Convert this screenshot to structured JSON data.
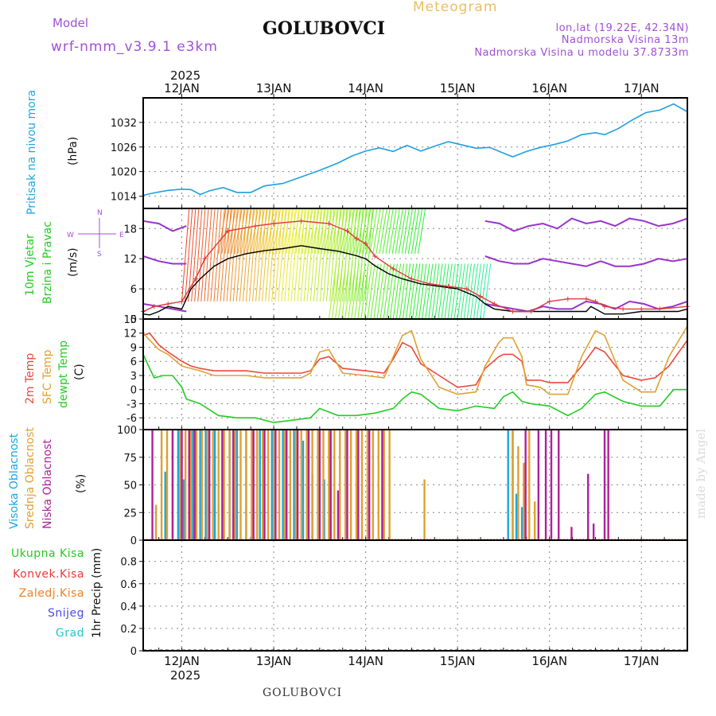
{
  "header": {
    "model_label": "Model",
    "model_name": "wrf-nmm_v3.9.1 e3km",
    "station": "GOLUBOVCI",
    "title": "Meteogram",
    "coords": "lon,lat (19.22E, 42.34N)",
    "altitude": "Nadmorska Visina 13m",
    "model_altitude": "Nadmorska Visina u modelu 37.8733m",
    "year": "2025",
    "footer_station": "GOLUBOVCI",
    "credit": "made by Angel"
  },
  "colors": {
    "pressure": "#1f9fe0",
    "temp2m": "#e84a3c",
    "sfc": "#e0a030",
    "dewpt": "#22cc22",
    "purple": "#9933cc",
    "high_cloud": "#1aa6e0",
    "mid_cloud": "#e0a030",
    "low_cloud": "#b0209a",
    "total_precip": "#22cc22",
    "conv_precip": "#e83a3a",
    "frz_precip": "#f08020",
    "snow": "#4a4ae8",
    "grad": "#22c8c8",
    "wind_red": "#e03a3a",
    "wind_black": "#000000"
  },
  "chart_data": [
    {
      "type": "line",
      "id": "pressure",
      "ylabel_1": "Pritisak na nivou mora",
      "ylabel_unit": "(hPa)",
      "ylim": [
        1011,
        1038
      ],
      "yticks": [
        1014,
        1020,
        1026,
        1032
      ],
      "xlim": [
        11.58,
        17.5
      ],
      "x_day_ticks": [
        "12JAN",
        "13JAN",
        "14JAN",
        "15JAN",
        "16JAN",
        "17JAN"
      ],
      "series": [
        {
          "name": "Sea level pressure",
          "x": [
            11.58,
            11.7,
            11.85,
            12.0,
            12.1,
            12.2,
            12.3,
            12.45,
            12.6,
            12.75,
            12.9,
            13.1,
            13.3,
            13.5,
            13.7,
            13.85,
            14.0,
            14.15,
            14.3,
            14.45,
            14.6,
            14.75,
            14.9,
            15.05,
            15.2,
            15.35,
            15.5,
            15.6,
            15.75,
            15.9,
            16.05,
            16.2,
            16.35,
            16.5,
            16.6,
            16.75,
            16.9,
            17.05,
            17.2,
            17.35,
            17.5
          ],
          "values": [
            1014.2,
            1014.8,
            1015.4,
            1015.7,
            1015.6,
            1014.4,
            1015.3,
            1016.1,
            1014.9,
            1014.9,
            1016.5,
            1017.1,
            1018.7,
            1020.3,
            1022.1,
            1023.8,
            1025.0,
            1025.8,
            1024.9,
            1026.4,
            1025.0,
            1026.2,
            1027.3,
            1026.5,
            1025.7,
            1025.9,
            1024.5,
            1023.6,
            1024.9,
            1025.9,
            1026.6,
            1027.5,
            1029.0,
            1029.5,
            1029.0,
            1030.5,
            1032.6,
            1034.4,
            1035.0,
            1036.5,
            1034.6
          ]
        }
      ]
    },
    {
      "type": "line",
      "id": "wind",
      "ylabel_1": "10m Vjetar",
      "ylabel_2": "Brzina i Pravac",
      "ylabel_unit": "(m/s)",
      "compass_top": "N",
      "compass_bottom": "S",
      "compass_west": "W",
      "compass_east": "E",
      "ylim": [
        0,
        22
      ],
      "yticks": [
        0,
        6,
        12,
        18
      ],
      "xlim": [
        11.58,
        17.5
      ],
      "series": [
        {
          "name": "Wind speed",
          "color_key": "wind_black",
          "x": [
            11.58,
            11.65,
            11.75,
            11.85,
            12.0,
            12.1,
            12.2,
            12.35,
            12.5,
            12.7,
            12.9,
            13.1,
            13.3,
            13.5,
            13.7,
            13.9,
            14.0,
            14.1,
            14.25,
            14.4,
            14.6,
            14.8,
            15.0,
            15.2,
            15.3,
            15.4,
            15.6,
            15.8,
            16.0,
            16.2,
            16.4,
            16.45,
            16.5,
            16.6,
            16.8,
            17.0,
            17.2,
            17.4,
            17.5
          ],
          "values": [
            1.0,
            0.8,
            1.5,
            2.5,
            2.0,
            6.0,
            8.0,
            10.5,
            12.0,
            13.0,
            13.6,
            14.0,
            14.6,
            14.0,
            13.5,
            12.6,
            12.0,
            10.6,
            9.0,
            8.0,
            7.0,
            6.5,
            6.0,
            4.5,
            3.0,
            2.0,
            1.5,
            1.5,
            1.5,
            1.5,
            1.5,
            2.5,
            2.0,
            1.0,
            1.0,
            1.5,
            1.5,
            1.5,
            2.0
          ]
        },
        {
          "name": "Wind gust",
          "color_key": "wind_red",
          "x": [
            11.58,
            11.7,
            11.85,
            12.0,
            12.15,
            12.25,
            12.5,
            12.8,
            13.0,
            13.3,
            13.6,
            13.8,
            13.9,
            14.0,
            14.1,
            14.3,
            14.5,
            14.7,
            14.9,
            15.1,
            15.25,
            15.4,
            15.6,
            15.8,
            16.0,
            16.2,
            16.4,
            16.5,
            16.6,
            16.8,
            17.0,
            17.2,
            17.5
          ],
          "values": [
            1.5,
            2.5,
            3.0,
            3.5,
            8.0,
            12.0,
            17.5,
            18.5,
            19.0,
            19.5,
            19.0,
            17.5,
            16.0,
            15.0,
            12.5,
            10.0,
            8.0,
            7.0,
            6.5,
            6.0,
            4.5,
            3.0,
            1.5,
            1.5,
            3.5,
            4.0,
            4.0,
            3.5,
            2.5,
            2.0,
            2.0,
            2.0,
            2.5
          ]
        }
      ]
    },
    {
      "type": "line",
      "id": "temperature",
      "ylabel_1": "2m Temp",
      "ylabel_2": "SFC Temp",
      "ylabel_3": "dewpt Temp",
      "ylabel_unit": "(C)",
      "ylim": [
        -8.5,
        15
      ],
      "yticks": [
        -6,
        -3,
        0,
        3,
        6,
        9,
        12,
        15
      ],
      "xlim": [
        11.58,
        17.5
      ],
      "series": [
        {
          "name": "2m Temp",
          "color_key": "temp2m",
          "x": [
            11.58,
            11.65,
            11.75,
            11.85,
            12.0,
            12.1,
            12.2,
            12.35,
            12.5,
            12.7,
            12.9,
            13.1,
            13.3,
            13.4,
            13.5,
            13.6,
            13.75,
            14.0,
            14.2,
            14.3,
            14.4,
            14.5,
            14.6,
            14.8,
            15.0,
            15.2,
            15.3,
            15.45,
            15.5,
            15.6,
            15.7,
            15.75,
            15.9,
            16.0,
            16.2,
            16.35,
            16.5,
            16.6,
            16.8,
            17.0,
            17.15,
            17.3,
            17.5
          ],
          "values": [
            11.5,
            12.0,
            9.5,
            8.0,
            6.0,
            5.0,
            4.5,
            4.0,
            4.0,
            4.0,
            3.5,
            3.5,
            3.5,
            4.0,
            6.5,
            7.0,
            4.5,
            4.0,
            3.5,
            6.5,
            10.0,
            9.0,
            5.5,
            3.0,
            0.5,
            1.0,
            4.5,
            7.0,
            7.5,
            7.5,
            6.0,
            2.0,
            2.0,
            1.5,
            1.5,
            5.0,
            9.0,
            8.0,
            3.0,
            2.0,
            2.5,
            5.0,
            10.5
          ]
        },
        {
          "name": "SFC Temp",
          "color_key": "sfc",
          "x": [
            11.58,
            11.65,
            11.75,
            11.85,
            12.0,
            12.1,
            12.2,
            12.35,
            12.5,
            12.7,
            12.9,
            13.1,
            13.3,
            13.4,
            13.5,
            13.6,
            13.75,
            14.0,
            14.2,
            14.3,
            14.4,
            14.5,
            14.6,
            14.8,
            15.0,
            15.2,
            15.3,
            15.45,
            15.5,
            15.6,
            15.7,
            15.75,
            15.9,
            16.0,
            16.2,
            16.35,
            16.5,
            16.6,
            16.8,
            17.0,
            17.15,
            17.3,
            17.5
          ],
          "values": [
            12.0,
            10.5,
            8.5,
            7.5,
            5.0,
            4.5,
            4.0,
            3.0,
            3.0,
            3.0,
            2.5,
            2.5,
            2.5,
            3.5,
            8.0,
            8.5,
            3.5,
            3.0,
            2.5,
            7.0,
            11.5,
            12.5,
            6.5,
            0.5,
            -1.0,
            -0.5,
            5.0,
            10.0,
            11.0,
            11.0,
            7.0,
            1.0,
            0.5,
            -1.0,
            -1.0,
            7.0,
            12.5,
            11.5,
            2.0,
            -0.5,
            -0.5,
            7.0,
            13.5
          ]
        },
        {
          "name": "dewpt Temp",
          "color_key": "dewpt",
          "x": [
            11.58,
            11.65,
            11.7,
            11.8,
            11.9,
            12.0,
            12.05,
            12.2,
            12.4,
            12.6,
            12.8,
            13.0,
            13.2,
            13.4,
            13.5,
            13.7,
            13.9,
            14.1,
            14.3,
            14.4,
            14.5,
            14.6,
            14.8,
            15.0,
            15.2,
            15.4,
            15.5,
            15.6,
            15.7,
            15.8,
            16.0,
            16.2,
            16.35,
            16.5,
            16.6,
            16.8,
            17.0,
            17.2,
            17.35,
            17.5
          ],
          "values": [
            7.5,
            4.5,
            2.5,
            3.0,
            3.0,
            0.5,
            -2.0,
            -3.0,
            -5.5,
            -6.0,
            -6.0,
            -7.0,
            -6.5,
            -6.0,
            -4.0,
            -5.5,
            -5.5,
            -5.0,
            -4.0,
            -2.0,
            -0.5,
            -1.0,
            -4.0,
            -4.5,
            -3.5,
            -4.0,
            -1.5,
            -0.5,
            -2.5,
            -3.0,
            -3.5,
            -5.5,
            -4.0,
            -1.0,
            -0.5,
            -2.5,
            -3.5,
            -3.5,
            0.0,
            0.0
          ]
        }
      ]
    },
    {
      "type": "bar",
      "id": "clouds",
      "ylabel_1": "Visoka Oblacnost",
      "ylabel_2": "Srednja Oblacnost",
      "ylabel_3": "Niska Oblacnost",
      "ylabel_unit": "(%)",
      "ylim": [
        0,
        100
      ],
      "yticks": [
        0,
        25,
        50,
        75,
        100
      ],
      "xlim": [
        11.58,
        17.5
      ],
      "series": [
        {
          "name": "Visoka Oblacnost",
          "color_key": "high_cloud",
          "x": [
            11.82,
            11.96,
            12.02,
            12.12,
            12.2,
            12.26,
            12.36,
            12.52,
            12.6,
            12.7,
            12.85,
            12.98,
            13.1,
            13.22,
            13.32,
            13.42,
            13.55,
            15.55,
            15.6,
            15.64,
            15.7
          ],
          "values": [
            62,
            100,
            55,
            100,
            100,
            100,
            100,
            100,
            100,
            100,
            100,
            100,
            100,
            100,
            90,
            60,
            55,
            100,
            100,
            42,
            30
          ]
        },
        {
          "name": "Srednja Oblacnost",
          "color_key": "mid_cloud",
          "x": [
            11.72,
            11.78,
            11.84,
            11.9,
            11.98,
            12.04,
            12.1,
            12.16,
            12.22,
            12.28,
            12.34,
            12.4,
            12.46,
            12.52,
            12.58,
            12.64,
            12.7,
            12.76,
            12.82,
            12.88,
            12.94,
            13.0,
            13.06,
            13.12,
            13.18,
            13.24,
            13.3,
            13.36,
            13.42,
            13.48,
            13.54,
            13.6,
            13.66,
            13.72,
            13.78,
            13.84,
            13.9,
            13.96,
            14.02,
            14.08,
            14.14,
            14.2,
            14.26,
            14.64,
            15.6,
            15.66,
            15.72,
            15.78,
            15.84
          ],
          "values": [
            32,
            100,
            100,
            100,
            100,
            100,
            100,
            100,
            100,
            100,
            100,
            100,
            100,
            100,
            100,
            100,
            100,
            100,
            100,
            100,
            100,
            100,
            100,
            100,
            100,
            100,
            100,
            100,
            100,
            100,
            100,
            100,
            100,
            100,
            100,
            100,
            100,
            100,
            100,
            100,
            100,
            100,
            100,
            55,
            100,
            85,
            70,
            100,
            35
          ]
        },
        {
          "name": "Niska Oblacnost",
          "color_key": "low_cloud",
          "x": [
            11.68,
            11.9,
            12.0,
            12.08,
            12.14,
            12.3,
            12.44,
            12.56,
            12.78,
            12.9,
            13.02,
            13.14,
            13.26,
            13.38,
            13.5,
            13.62,
            13.7,
            13.8,
            13.92,
            14.04,
            14.18,
            15.74,
            15.88,
            15.96,
            16.02,
            16.1,
            16.24,
            16.42,
            16.48,
            16.6,
            16.64
          ],
          "values": [
            100,
            100,
            100,
            100,
            100,
            100,
            100,
            100,
            100,
            100,
            100,
            100,
            100,
            100,
            100,
            100,
            45,
            100,
            100,
            100,
            100,
            100,
            100,
            100,
            100,
            100,
            12,
            60,
            15,
            100,
            100
          ]
        }
      ]
    },
    {
      "type": "bar",
      "id": "precip",
      "ylabel_unit": "1hr Precip (mm)",
      "legend": [
        "Ukupna Kisa",
        "Konvek.Kisa",
        "Zaledj.Kisa",
        "Snijeg",
        "Grad"
      ],
      "ylim": [
        0,
        0.99
      ],
      "yticks": [
        0,
        0.2,
        0.4,
        0.6,
        0.8
      ],
      "ytick_labels": [
        "0",
        "0.2",
        "0.4",
        "0.6",
        "0.8"
      ],
      "xlim": [
        11.58,
        17.5
      ],
      "series": [
        {
          "name": "Ukupna Kisa",
          "color_key": "total_precip",
          "x": [],
          "values": []
        }
      ]
    }
  ]
}
